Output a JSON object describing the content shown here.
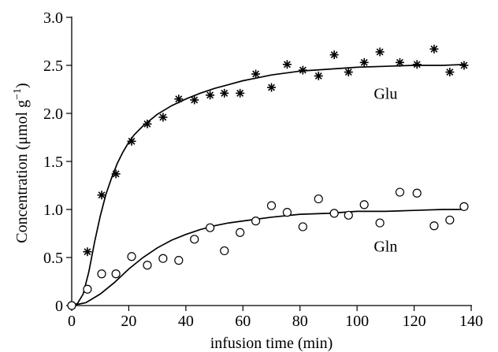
{
  "chart_data": {
    "type": "scatter",
    "xlabel": "infusion time (min)",
    "ylabel_main": "Concentration (μmol g",
    "ylabel_sup": "−1",
    "ylabel_close": ")",
    "xlim": [
      0,
      140
    ],
    "ylim": [
      0,
      3.0
    ],
    "xticks": [
      0,
      20,
      40,
      60,
      80,
      100,
      120,
      140
    ],
    "yticks": [
      0,
      0.5,
      1.0,
      1.5,
      2.0,
      2.5,
      3.0
    ],
    "xtick_labels": [
      "0",
      "20",
      "40",
      "60",
      "80",
      "100",
      "120",
      "140"
    ],
    "ytick_labels": [
      "0",
      "0.5",
      "1.0",
      "1.5",
      "2.0",
      "2.5",
      "3.0"
    ],
    "grid": false,
    "series": [
      {
        "name": "Glu",
        "marker": "asterisk",
        "points": [
          [
            0,
            0.0
          ],
          [
            5.5,
            0.56
          ],
          [
            10.5,
            1.15
          ],
          [
            15.5,
            1.37
          ],
          [
            21,
            1.71
          ],
          [
            26.5,
            1.89
          ],
          [
            32,
            1.96
          ],
          [
            37.5,
            2.15
          ],
          [
            43,
            2.14
          ],
          [
            48.5,
            2.19
          ],
          [
            53.5,
            2.21
          ],
          [
            59,
            2.21
          ],
          [
            64.5,
            2.41
          ],
          [
            70,
            2.27
          ],
          [
            75.5,
            2.51
          ],
          [
            81,
            2.45
          ],
          [
            86.5,
            2.39
          ],
          [
            92,
            2.61
          ],
          [
            97,
            2.43
          ],
          [
            102.5,
            2.53
          ],
          [
            108,
            2.64
          ],
          [
            115,
            2.53
          ],
          [
            121,
            2.51
          ],
          [
            127,
            2.67
          ],
          [
            132.5,
            2.43
          ],
          [
            137.5,
            2.5
          ]
        ],
        "fit": [
          [
            0,
            0.0
          ],
          [
            2,
            0.02
          ],
          [
            4,
            0.12
          ],
          [
            6,
            0.35
          ],
          [
            8,
            0.66
          ],
          [
            10,
            0.93
          ],
          [
            12,
            1.16
          ],
          [
            14,
            1.33
          ],
          [
            16,
            1.48
          ],
          [
            18,
            1.6
          ],
          [
            20,
            1.7
          ],
          [
            22,
            1.78
          ],
          [
            25,
            1.87
          ],
          [
            30,
            1.99
          ],
          [
            35,
            2.08
          ],
          [
            40,
            2.15
          ],
          [
            45,
            2.21
          ],
          [
            50,
            2.26
          ],
          [
            55,
            2.3
          ],
          [
            60,
            2.34
          ],
          [
            65,
            2.37
          ],
          [
            70,
            2.4
          ],
          [
            80,
            2.44
          ],
          [
            90,
            2.46
          ],
          [
            100,
            2.48
          ],
          [
            110,
            2.49
          ],
          [
            120,
            2.5
          ],
          [
            130,
            2.5
          ],
          [
            138,
            2.51
          ]
        ]
      },
      {
        "name": "Gln",
        "marker": "open-circle",
        "points": [
          [
            0,
            0.0
          ],
          [
            5.5,
            0.17
          ],
          [
            10.5,
            0.33
          ],
          [
            15.5,
            0.33
          ],
          [
            21,
            0.51
          ],
          [
            26.5,
            0.42
          ],
          [
            32,
            0.49
          ],
          [
            37.5,
            0.47
          ],
          [
            43,
            0.69
          ],
          [
            48.5,
            0.81
          ],
          [
            53.5,
            0.57
          ],
          [
            59,
            0.76
          ],
          [
            64.5,
            0.88
          ],
          [
            70,
            1.04
          ],
          [
            75.5,
            0.97
          ],
          [
            81,
            0.82
          ],
          [
            86.5,
            1.11
          ],
          [
            92,
            0.96
          ],
          [
            97,
            0.94
          ],
          [
            102.5,
            1.05
          ],
          [
            108,
            0.86
          ],
          [
            115,
            1.18
          ],
          [
            121,
            1.17
          ],
          [
            127,
            0.83
          ],
          [
            132.5,
            0.89
          ],
          [
            137.5,
            1.03
          ]
        ],
        "fit": [
          [
            0,
            0.0
          ],
          [
            5,
            0.03
          ],
          [
            10,
            0.12
          ],
          [
            15,
            0.24
          ],
          [
            20,
            0.38
          ],
          [
            25,
            0.5
          ],
          [
            30,
            0.6
          ],
          [
            35,
            0.68
          ],
          [
            40,
            0.74
          ],
          [
            45,
            0.79
          ],
          [
            50,
            0.83
          ],
          [
            55,
            0.86
          ],
          [
            60,
            0.88
          ],
          [
            70,
            0.92
          ],
          [
            80,
            0.95
          ],
          [
            90,
            0.96
          ],
          [
            100,
            0.98
          ],
          [
            110,
            0.98
          ],
          [
            120,
            0.99
          ],
          [
            130,
            1.0
          ],
          [
            138,
            1.0
          ]
        ]
      }
    ],
    "annotations": [
      {
        "text": "Glu",
        "x": 110,
        "y": 2.15
      },
      {
        "text": "Gln",
        "x": 110,
        "y": 0.56
      }
    ]
  }
}
